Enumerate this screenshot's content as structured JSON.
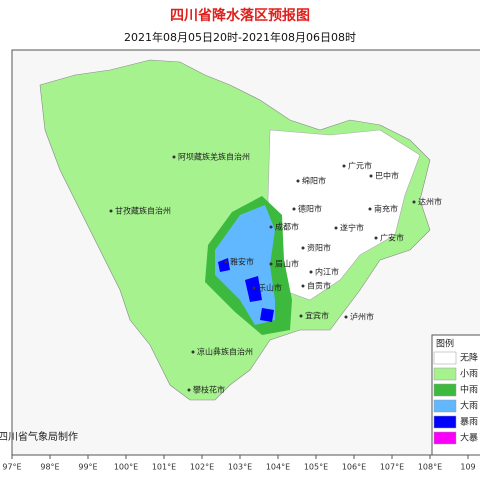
{
  "header": {
    "title": "四川省降水落区预报图",
    "subtitle": "2021年08月05日20时-2021年08月06日08时"
  },
  "places": [
    "阿坝藏族羌族自治州",
    "广元市",
    "巴中市",
    "绵阳市",
    "甘孜藏族自治州",
    "德阳市",
    "南充市",
    "达州市",
    "成都市",
    "遂宁市",
    "广安市",
    "资阳市",
    "雅安市",
    "眉山市",
    "内江市",
    "乐山市",
    "自贡市",
    "宜宾市",
    "泸州市",
    "凉山彝族自治州",
    "攀枝花市"
  ],
  "legend": {
    "title": "图例",
    "items": [
      {
        "label": "无降",
        "color": "#ffffff"
      },
      {
        "label": "小雨",
        "color": "#a6f28f"
      },
      {
        "label": "中雨",
        "color": "#3dba3d"
      },
      {
        "label": "大雨",
        "color": "#61b8ff"
      },
      {
        "label": "暴雨",
        "color": "#0000fe"
      },
      {
        "label": "大暴",
        "color": "#fa00fa"
      }
    ]
  },
  "footer": "四川省气象局制作",
  "longitudes": [
    "97°E",
    "98°E",
    "99°E",
    "100°E",
    "101°E",
    "102°E",
    "103°E",
    "104°E",
    "105°E",
    "106°E",
    "107°E",
    "108°E",
    "109"
  ]
}
